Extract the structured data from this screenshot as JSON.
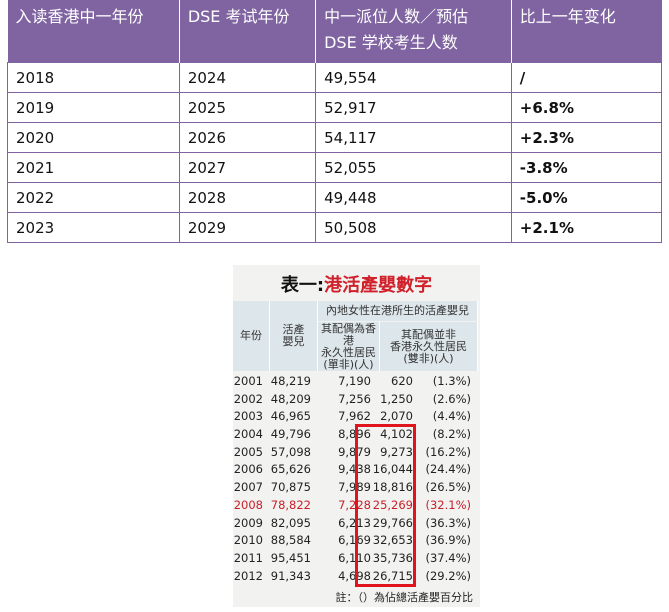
{
  "table": {
    "header": [
      "入读香港中一年份",
      "DSE 考试年份",
      [
        "中一派位人数／预估",
        "DSE 学校考生人数"
      ],
      "比上一年变化"
    ],
    "rows": [
      [
        "2018",
        "2024",
        "49,554",
        "/"
      ],
      [
        "2019",
        "2025",
        "52,917",
        "+6.8%"
      ],
      [
        "2020",
        "2026",
        "54,117",
        "+2.3%"
      ],
      [
        "2021",
        "2027",
        "52,055",
        "-3.8%"
      ],
      [
        "2022",
        "2028",
        "49,448",
        "-5.0%"
      ],
      [
        "2023",
        "2029",
        "50,508",
        "+2.1%"
      ]
    ]
  },
  "image_table": {
    "title_prefix": "表一:",
    "title": "港活產嬰數字",
    "header": {
      "year": "年份",
      "births": [
        "活產",
        "嬰兒"
      ],
      "group": "內地女性在港所生的活產嬰兒",
      "single": [
        "其配偶為香港",
        "永久性居民",
        "(單非)(人)"
      ],
      "double": [
        "其配偶並非",
        "香港永久性居民",
        "(雙非)(人)"
      ]
    },
    "rows": [
      [
        "2001",
        "48,219",
        "7,190",
        "620",
        "(1.3%)"
      ],
      [
        "2002",
        "48,209",
        "7,256",
        "1,250",
        "(2.6%)"
      ],
      [
        "2003",
        "46,965",
        "7,962",
        "2,070",
        "(4.4%)"
      ],
      [
        "2004",
        "49,796",
        "8,896",
        "4,102",
        "(8.2%)"
      ],
      [
        "2005",
        "57,098",
        "9,879",
        "9,273",
        "(16.2%)"
      ],
      [
        "2006",
        "65,626",
        "9,438",
        "16,044",
        "(24.4%)"
      ],
      [
        "2007",
        "70,875",
        "7,989",
        "18,816",
        "(26.5%)"
      ],
      [
        "2008",
        "78,822",
        "7,228",
        "25,269",
        "(32.1%)"
      ],
      [
        "2009",
        "82,095",
        "6,213",
        "29,766",
        "(36.3%)"
      ],
      [
        "2010",
        "88,584",
        "6,169",
        "32,653",
        "(36.9%)"
      ],
      [
        "2011",
        "95,451",
        "6,110",
        "35,736",
        "(37.4%)"
      ],
      [
        "2012",
        "91,343",
        "4,698",
        "26,715",
        "(29.2%)"
      ]
    ],
    "note": "註：（）為佔總活產嬰百分比"
  }
}
